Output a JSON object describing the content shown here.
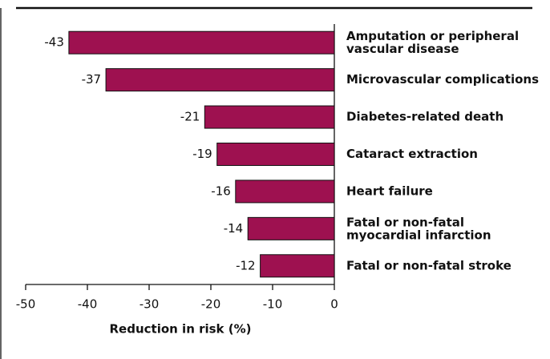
{
  "chart_data": {
    "type": "bar",
    "orientation": "horizontal",
    "categories": [
      "Amputation or peripheral\nvascular disease",
      "Microvascular complications",
      "Diabetes-related death",
      "Cataract extraction",
      "Heart failure",
      "Fatal or non-fatal\nmyocardial infarction",
      "Fatal or non-fatal stroke"
    ],
    "values": [
      -43,
      -37,
      -21,
      -19,
      -16,
      -14,
      -12
    ],
    "color": "#9e1150",
    "xlabel": "Reduction in risk (%)",
    "xlim": [
      -50,
      0
    ],
    "xticks": [
      -50,
      -40,
      -30,
      -20,
      -10,
      0
    ],
    "grid": false
  }
}
